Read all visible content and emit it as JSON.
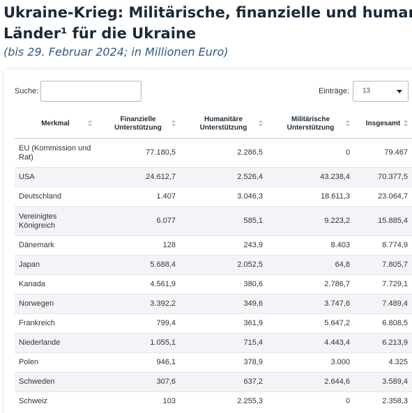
{
  "header": {
    "title_line1": "Ukraine-Krieg: Militärische, finanzielle und humanitäre Unterstützung der",
    "title_line2": "Länder¹ für die Ukraine",
    "subtitle": "(bis 29. Februar 2024; in Millionen Euro)"
  },
  "controls": {
    "search_label": "Suche:",
    "search_value": "",
    "entries_label": "Einträge:",
    "entries_value": "13"
  },
  "table": {
    "columns": [
      "Merkmal",
      "Finanzielle Unterstützung",
      "Humanitäre Unterstützung",
      "Militärische Unterstützung",
      "Insgesamt"
    ],
    "rows": [
      [
        "EU (Kommission und Rat)",
        "77.180,5",
        "2.286,5",
        "0",
        "79.467"
      ],
      [
        "USA",
        "24.612,7",
        "2.526,4",
        "43.238,4",
        "70.377,5"
      ],
      [
        "Deutschland",
        "1.407",
        "3.046,3",
        "18.611,3",
        "23.064,7"
      ],
      [
        "Vereinigtes Königreich",
        "6.077",
        "585,1",
        "9.223,2",
        "15.885,4"
      ],
      [
        "Dänemark",
        "128",
        "243,9",
        "8.403",
        "8.774,9"
      ],
      [
        "Japan",
        "5.688,4",
        "2.052,5",
        "64,8",
        "7.805,7"
      ],
      [
        "Kanada",
        "4.561,9",
        "380,6",
        "2.786,7",
        "7.729,1"
      ],
      [
        "Norwegen",
        "3.392,2",
        "349,6",
        "3.747,6",
        "7.489,4"
      ],
      [
        "Frankreich",
        "799,4",
        "361,9",
        "5.647,2",
        "6.808,5"
      ],
      [
        "Niederlande",
        "1.055,1",
        "715,4",
        "4.443,4",
        "6.213,9"
      ],
      [
        "Polen",
        "946,1",
        "378,9",
        "3.000",
        "4.325"
      ],
      [
        "Schweden",
        "307,6",
        "637,2",
        "2.644,6",
        "3.589,4"
      ],
      [
        "Schweiz",
        "103",
        "2.255,3",
        "0",
        "2.358,3"
      ]
    ]
  }
}
